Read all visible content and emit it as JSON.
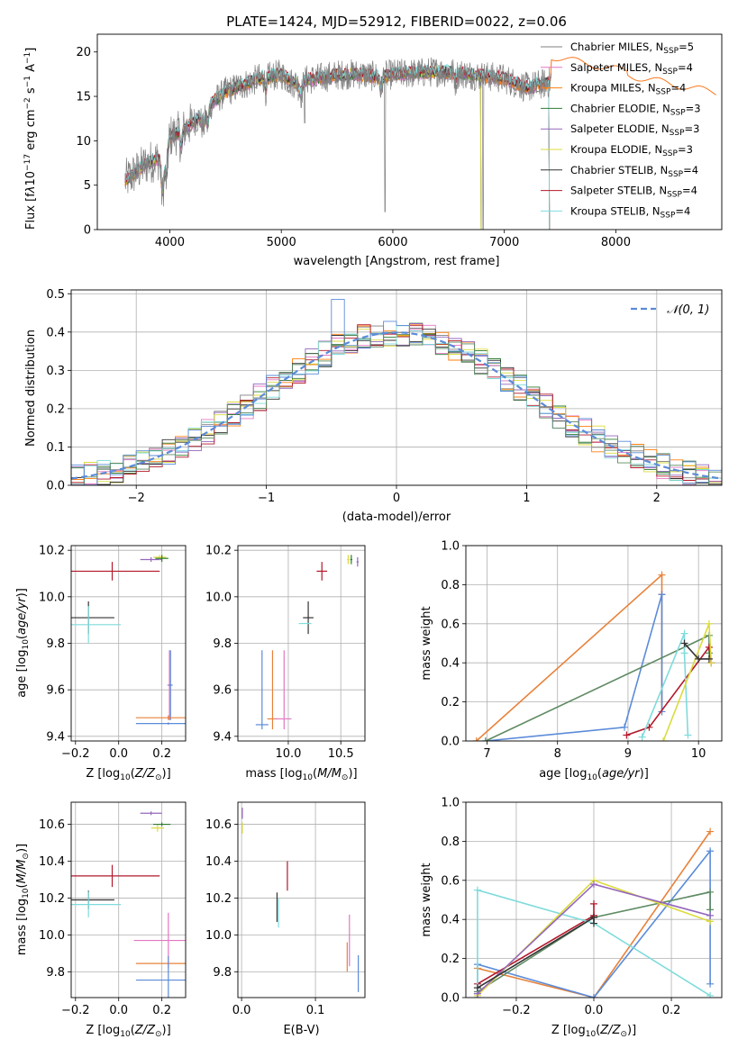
{
  "colors": {
    "Chabrier MILES": "#7f7f7f",
    "Salpeter MILES": "#e377c2",
    "Kroupa MILES": "#ff7f0e",
    "Chabrier ELODIE": "#2e7d32",
    "Salpeter ELODIE": "#9467bd",
    "Kroupa ELODIE": "#dbdb3d",
    "Chabrier STELIB": "#333333",
    "Salpeter STELIB": "#b2182b",
    "Kroupa STELIB": "#7fdbdb",
    "blue": "#5b8bd8",
    "orange": "#e8823a",
    "green": "#5e8a62"
  },
  "chart_data": [
    {
      "id": "spectrum",
      "type": "line",
      "title": "PLATE=1424, MJD=52912, FIBERID=0022, z=0.06",
      "xlabel": "wavelength [Angstrom, rest frame]",
      "ylabel_parts": [
        "Flux [f",
        "λ",
        "10",
        "−17",
        " erg cm",
        "−2",
        " s",
        "−1",
        " A",
        "−1",
        "]"
      ],
      "xlim": [
        3350,
        8950
      ],
      "ylim": [
        0,
        22
      ],
      "xticks": [
        4000,
        5000,
        6000,
        7000,
        8000
      ],
      "yticks": [
        0,
        5,
        10,
        15,
        20
      ],
      "legend_position": "top-right",
      "series": [
        {
          "name": "Chabrier MILES",
          "nssp": "5"
        },
        {
          "name": "Salpeter MILES",
          "nssp": "4"
        },
        {
          "name": "Kroupa MILES",
          "nssp": "4"
        },
        {
          "name": "Chabrier ELODIE",
          "nssp": "3"
        },
        {
          "name": "Salpeter ELODIE",
          "nssp": "3"
        },
        {
          "name": "Kroupa ELODIE",
          "nssp": "3"
        },
        {
          "name": "Chabrier STELIB",
          "nssp": "4"
        },
        {
          "name": "Salpeter STELIB",
          "nssp": "4"
        },
        {
          "name": "Kroupa STELIB",
          "nssp": "4"
        }
      ],
      "continuum": {
        "x": [
          3600,
          3700,
          3800,
          3900,
          4000,
          4100,
          4200,
          4300,
          4400,
          4500,
          4600,
          4700,
          4800,
          4900,
          5000,
          5100,
          5200,
          5300,
          5400,
          5500,
          5600,
          5700,
          5800,
          5900,
          6000,
          6200,
          6400,
          6600,
          6800,
          7000,
          7100,
          7200,
          7300,
          7400,
          7500,
          7600,
          7700,
          7800,
          7900
        ],
        "y": [
          5.5,
          6.5,
          7.5,
          8.0,
          10.5,
          11.0,
          12.0,
          13.0,
          14.5,
          15.5,
          16.0,
          16.5,
          17.0,
          17.2,
          17.5,
          16.5,
          16.8,
          17.0,
          17.2,
          17.4,
          17.5,
          17.5,
          17.3,
          17.2,
          17.5,
          17.6,
          17.8,
          17.6,
          17.3,
          17.0,
          16.5,
          16.0,
          16.3,
          16.5,
          19.0,
          18.5,
          18.0,
          17.5,
          17.2
        ]
      }
    },
    {
      "id": "residuals",
      "type": "bar",
      "xlabel": "(data-model)/error",
      "ylabel": "Normed distribution",
      "xlim": [
        -2.5,
        2.5
      ],
      "ylim": [
        0,
        0.51
      ],
      "xticks": [
        -2,
        -1,
        0,
        1,
        2
      ],
      "yticks": [
        0.0,
        0.1,
        0.2,
        0.3,
        0.4,
        0.5
      ],
      "legend": "𝒩(0, 1)",
      "legend_position": "top-right",
      "bin_width": 0.1
    },
    {
      "id": "age-vs-Z",
      "type": "scatter",
      "xlabel_parts": [
        "Z [log",
        "10",
        "(",
        "Z/Z",
        "⊙",
        ")]"
      ],
      "ylabel_parts": [
        "age  [log",
        "10",
        "(",
        "age/yr",
        ")]"
      ],
      "xlim": [
        -0.22,
        0.31
      ],
      "ylim": [
        9.38,
        10.22
      ],
      "xticks": [
        -0.2,
        0.0,
        0.2
      ],
      "xtick_labels": [
        "−0.2",
        "0.0",
        "0.2"
      ],
      "yticks": [
        9.4,
        9.6,
        9.8,
        10.0,
        10.2
      ],
      "points": [
        {
          "series": "Salpeter ELODIE",
          "x": 0.15,
          "y": 10.16,
          "xerr": 0.05,
          "yerr": 0.01
        },
        {
          "series": "Kroupa ELODIE",
          "x": 0.19,
          "y": 10.17,
          "xerr": 0.03,
          "yerr": 0.01
        },
        {
          "series": "Chabrier ELODIE",
          "x": 0.2,
          "y": 10.165,
          "xerr": 0.03,
          "yerr": 0.015
        },
        {
          "series": "Salpeter STELIB",
          "x": -0.03,
          "y": 10.11,
          "xerr": 0.22,
          "yerr": 0.04
        },
        {
          "series": "Chabrier STELIB",
          "x": -0.14,
          "y": 9.91,
          "xerr": 0.12,
          "yerr": 0.07
        },
        {
          "series": "Kroupa STELIB",
          "x": -0.14,
          "y": 9.88,
          "xerr": 0.15,
          "yerr": 0.08
        },
        {
          "series": "Salpeter MILES",
          "x": 0.235,
          "y": 9.62,
          "xerr": 0.01,
          "yerr": 0.15
        },
        {
          "series": "blue",
          "x": 0.24,
          "y": 9.62,
          "xerr": 0.01,
          "yerr": 0.15
        },
        {
          "series": "orange",
          "x": 0.23,
          "y": 9.48,
          "xerr": 0.15,
          "yerr": 0.01
        },
        {
          "series": "blue",
          "x": 0.23,
          "y": 9.455,
          "xerr": 0.15,
          "yerr": 0.005
        }
      ]
    },
    {
      "id": "age-vs-mass",
      "type": "scatter",
      "xlabel_parts": [
        "mass [log",
        "10",
        "(",
        "M/M",
        "⊙",
        ")]"
      ],
      "xlim": [
        9.52,
        10.73
      ],
      "ylim": [
        9.38,
        10.22
      ],
      "xticks": [
        10.0,
        10.5
      ],
      "xtick_labels": [
        "10.0",
        "10.5"
      ],
      "yticks": [
        9.4,
        9.6,
        9.8,
        10.0,
        10.2
      ],
      "points": [
        {
          "series": "Kroupa ELODIE",
          "x": 10.57,
          "y": 10.16,
          "xerr": 0.01,
          "yerr": 0.02
        },
        {
          "series": "Chabrier ELODIE",
          "x": 10.6,
          "y": 10.16,
          "xerr": 0.01,
          "yerr": 0.02
        },
        {
          "series": "Salpeter ELODIE",
          "x": 10.66,
          "y": 10.15,
          "xerr": 0.01,
          "yerr": 0.02
        },
        {
          "series": "Salpeter STELIB",
          "x": 10.32,
          "y": 10.11,
          "xerr": 0.05,
          "yerr": 0.04
        },
        {
          "series": "Chabrier STELIB",
          "x": 10.19,
          "y": 9.91,
          "xerr": 0.05,
          "yerr": 0.07
        },
        {
          "series": "Kroupa STELIB",
          "x": 10.16,
          "y": 9.885,
          "xerr": 0.06,
          "yerr": 0.0
        },
        {
          "series": "blue",
          "x": 9.75,
          "y": 9.6,
          "xerr": 0.0,
          "yerr": 0.17
        },
        {
          "series": "orange",
          "x": 9.85,
          "y": 9.6,
          "xerr": 0.0,
          "yerr": 0.17
        },
        {
          "series": "Salpeter MILES",
          "x": 9.96,
          "y": 9.6,
          "xerr": 0.0,
          "yerr": 0.17
        },
        {
          "series": "orange",
          "x": 9.85,
          "y": 9.475,
          "xerr": 0.05,
          "yerr": 0.0
        },
        {
          "series": "Salpeter MILES",
          "x": 9.95,
          "y": 9.475,
          "xerr": 0.08,
          "yerr": 0.0
        },
        {
          "series": "blue",
          "x": 9.75,
          "y": 9.45,
          "xerr": 0.06,
          "yerr": 0.0
        }
      ]
    },
    {
      "id": "weight-vs-age",
      "type": "line",
      "xlabel_parts": [
        "age  [log",
        "10",
        "(",
        "age/yr",
        ")]"
      ],
      "ylabel": "mass weight",
      "xlim": [
        6.7,
        10.33
      ],
      "ylim": [
        0,
        1.0
      ],
      "xticks": [
        7,
        8,
        9,
        10
      ],
      "xtick_labels": [
        "7",
        "8",
        "9",
        "10"
      ],
      "yticks": [
        0.0,
        0.2,
        0.4,
        0.6,
        0.8,
        1.0
      ],
      "ytick_labels": [
        "0.0",
        "0.2",
        "0.4",
        "0.6",
        "0.8",
        "1.0"
      ],
      "series": [
        {
          "series": "orange",
          "x": [
            6.85,
            9.48,
            9.48,
            9.48
          ],
          "y": [
            0.0,
            0.85,
            0.75,
            0.15
          ]
        },
        {
          "series": "blue",
          "x": [
            6.98,
            8.95,
            9.48,
            9.48
          ],
          "y": [
            0.0,
            0.07,
            0.75,
            0.15
          ]
        },
        {
          "series": "green",
          "x": [
            6.98,
            10.15,
            10.15
          ],
          "y": [
            0.0,
            0.54,
            0.45
          ]
        },
        {
          "series": "Salpeter STELIB",
          "x": [
            8.98,
            9.3,
            10.15,
            10.18
          ],
          "y": [
            0.03,
            0.07,
            0.48,
            0.4
          ]
        },
        {
          "series": "Kroupa STELIB",
          "x": [
            9.2,
            9.8,
            9.8,
            9.85
          ],
          "y": [
            0.02,
            0.55,
            0.45,
            0.03
          ]
        },
        {
          "series": "Kroupa ELODIE",
          "x": [
            9.5,
            10.15,
            10.18
          ],
          "y": [
            0.0,
            0.6,
            0.4
          ]
        },
        {
          "series": "Chabrier STELIB",
          "x": [
            9.8,
            10.0,
            10.15
          ],
          "y": [
            0.5,
            0.42,
            0.42
          ]
        }
      ]
    },
    {
      "id": "mass-vs-Z",
      "type": "scatter",
      "xlabel_parts": [
        "Z [log",
        "10",
        "(",
        "Z/Z",
        "⊙",
        ")]"
      ],
      "ylabel_parts": [
        "mass [log",
        "10",
        "(",
        "M/M",
        "⊙",
        ")]"
      ],
      "xlim": [
        -0.22,
        0.31
      ],
      "ylim": [
        9.66,
        10.72
      ],
      "xticks": [
        -0.2,
        0.0,
        0.2
      ],
      "xtick_labels": [
        "−0.2",
        "0.0",
        "0.2"
      ],
      "yticks": [
        9.8,
        10.0,
        10.2,
        10.4,
        10.6
      ],
      "points": [
        {
          "series": "Salpeter ELODIE",
          "x": 0.15,
          "y": 10.66,
          "xerr": 0.05,
          "yerr": 0.01
        },
        {
          "series": "Kroupa ELODIE",
          "x": 0.18,
          "y": 10.58,
          "xerr": 0.03,
          "yerr": 0.02
        },
        {
          "series": "Chabrier ELODIE",
          "x": 0.2,
          "y": 10.6,
          "xerr": 0.04,
          "yerr": 0.01
        },
        {
          "series": "Salpeter STELIB",
          "x": -0.03,
          "y": 10.32,
          "xerr": 0.22,
          "yerr": 0.06
        },
        {
          "series": "Chabrier STELIB",
          "x": -0.14,
          "y": 10.19,
          "xerr": 0.12,
          "yerr": 0.05
        },
        {
          "series": "Kroupa STELIB",
          "x": -0.14,
          "y": 10.165,
          "xerr": 0.15,
          "yerr": 0.07
        },
        {
          "series": "Salpeter MILES",
          "x": 0.23,
          "y": 9.97,
          "xerr": 0.16,
          "yerr": 0.15
        },
        {
          "series": "orange",
          "x": 0.23,
          "y": 9.845,
          "xerr": 0.15,
          "yerr": 0.0
        },
        {
          "series": "blue",
          "x": 0.23,
          "y": 9.755,
          "xerr": 0.15,
          "yerr": 0.13
        }
      ]
    },
    {
      "id": "mass-vs-ebv",
      "type": "scatter",
      "xlabel": "E(B-V)",
      "xlim": [
        -0.005,
        0.167
      ],
      "ylim": [
        9.66,
        10.72
      ],
      "xticks": [
        0.0,
        0.1
      ],
      "xtick_labels": [
        "0.0",
        "0.1"
      ],
      "yticks": [
        9.8,
        10.0,
        10.2,
        10.4,
        10.6
      ],
      "points": [
        {
          "series": "Salpeter ELODIE",
          "x": 0.001,
          "y": 10.66,
          "xerr": 0.0,
          "yerr": 0.03
        },
        {
          "series": "Kroupa ELODIE",
          "x": 0.001,
          "y": 10.58,
          "xerr": 0.0,
          "yerr": 0.03
        },
        {
          "series": "Salpeter STELIB",
          "x": 0.062,
          "y": 10.32,
          "xerr": 0.0,
          "yerr": 0.08
        },
        {
          "series": "Chabrier STELIB",
          "x": 0.048,
          "y": 10.15,
          "xerr": 0.0,
          "yerr": 0.08
        },
        {
          "series": "Kroupa STELIB",
          "x": 0.05,
          "y": 10.12,
          "xerr": 0.0,
          "yerr": 0.08
        },
        {
          "series": "Salpeter MILES",
          "x": 0.146,
          "y": 9.97,
          "xerr": 0.0,
          "yerr": 0.14
        },
        {
          "series": "orange",
          "x": 0.143,
          "y": 9.88,
          "xerr": 0.0,
          "yerr": 0.08
        },
        {
          "series": "blue",
          "x": 0.158,
          "y": 9.79,
          "xerr": 0.0,
          "yerr": 0.1
        }
      ]
    },
    {
      "id": "weight-vs-Z",
      "type": "line",
      "xlabel_parts": [
        "Z [log",
        "10",
        "(",
        "Z/Z",
        "⊙",
        ")]"
      ],
      "ylabel": "mass weight",
      "xlim": [
        -0.33,
        0.33
      ],
      "ylim": [
        0,
        1.0
      ],
      "xticks": [
        -0.2,
        0.0,
        0.2
      ],
      "xtick_labels": [
        "−0.2",
        "0.0",
        "0.2"
      ],
      "yticks": [
        0.0,
        0.2,
        0.4,
        0.6,
        0.8,
        1.0
      ],
      "ytick_labels": [
        "0.0",
        "0.2",
        "0.4",
        "0.6",
        "0.8",
        "1.0"
      ],
      "series": [
        {
          "series": "orange",
          "x": [
            -0.3,
            0.0,
            0.3
          ],
          "y": [
            0.15,
            0.0,
            0.85
          ]
        },
        {
          "series": "blue",
          "x": [
            -0.3,
            -0.3,
            0.0,
            0.3,
            0.3
          ],
          "y": [
            0.0,
            0.17,
            0.0,
            0.75,
            0.07
          ]
        },
        {
          "series": "green",
          "x": [
            -0.3,
            0.0,
            0.3,
            0.3
          ],
          "y": [
            0.03,
            0.41,
            0.54,
            0.45
          ]
        },
        {
          "series": "Salpeter STELIB",
          "x": [
            -0.3,
            0.0,
            0.0
          ],
          "y": [
            0.07,
            0.42,
            0.48
          ]
        },
        {
          "series": "Kroupa STELIB",
          "x": [
            -0.3,
            -0.3,
            0.0,
            0.3
          ],
          "y": [
            0.02,
            0.55,
            0.38,
            0.01
          ]
        },
        {
          "series": "Kroupa ELODIE",
          "x": [
            -0.3,
            0.0,
            0.3
          ],
          "y": [
            0.01,
            0.6,
            0.39
          ]
        },
        {
          "series": "Salpeter ELODIE",
          "x": [
            -0.3,
            0.0,
            0.3
          ],
          "y": [
            0.02,
            0.58,
            0.42
          ]
        },
        {
          "series": "Chabrier STELIB",
          "x": [
            -0.3,
            0.0,
            0.0
          ],
          "y": [
            0.05,
            0.41,
            0.38
          ]
        }
      ]
    }
  ]
}
